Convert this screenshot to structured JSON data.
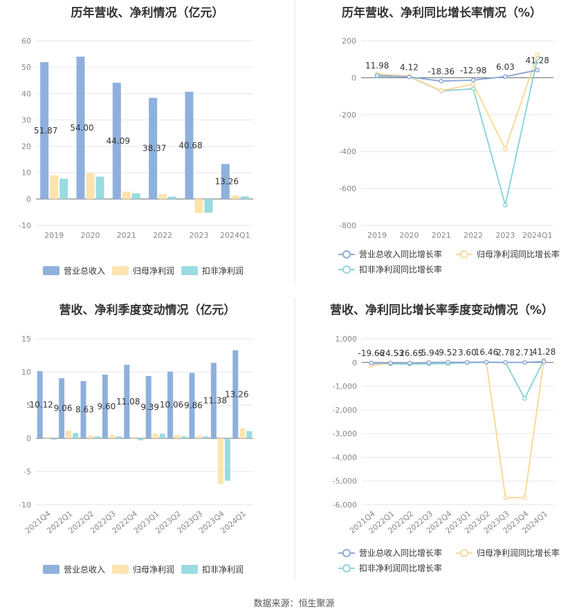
{
  "source": "数据来源：恒生聚源",
  "colors": {
    "revenue": "#8eb0dc",
    "profit": "#fde3ae",
    "nonprofit": "#99dbe0",
    "rev_line": "#8eaad6",
    "profit_line": "#fbd99b",
    "nonprofit_line": "#8fd4d8",
    "grid": "#e6e6e6",
    "axis_text": "#888888"
  },
  "chart_data": [
    {
      "type": "bar",
      "title": "历年营收、净利情况（亿元）",
      "categories": [
        "2019",
        "2020",
        "2021",
        "2022",
        "2023",
        "2024Q1"
      ],
      "ylim": [
        -10,
        60
      ],
      "yticks": [
        -10,
        0,
        10,
        20,
        30,
        40,
        50,
        60
      ],
      "series": [
        {
          "name": "营业总收入",
          "values": [
            51.87,
            54.0,
            44.09,
            38.37,
            40.68,
            13.26
          ]
        },
        {
          "name": "归母净利润",
          "values": [
            9.0,
            9.8,
            2.8,
            1.8,
            -5.3,
            1.3
          ]
        },
        {
          "name": "扣非净利润",
          "values": [
            7.7,
            8.5,
            2.2,
            0.9,
            -5.2,
            1.0
          ]
        }
      ],
      "data_labels": [
        "51.87",
        "54.00",
        "44.09",
        "38.37",
        "40.68",
        "13.26"
      ],
      "legend": "bottom"
    },
    {
      "type": "line",
      "title": "历年营收、净利同比增长率情况（%）",
      "categories": [
        "2019",
        "2020",
        "2021",
        "2022",
        "2023",
        "2024Q1"
      ],
      "ylim": [
        -800,
        200
      ],
      "yticks": [
        -800,
        -600,
        -400,
        -200,
        0,
        200
      ],
      "series": [
        {
          "name": "营业总收入同比增长率",
          "values": [
            11.98,
            4.12,
            -18.36,
            -12.98,
            6.03,
            41.28
          ]
        },
        {
          "name": "归母净利润同比增长率",
          "values": [
            20,
            8,
            -70,
            -35,
            -385,
            125
          ]
        },
        {
          "name": "扣非净利润同比增长率",
          "values": [
            8,
            6,
            -72,
            -60,
            -690,
            105
          ]
        }
      ],
      "data_labels": [
        "11.98",
        "4.12",
        "-18.36",
        "-12.98",
        "6.03",
        "41.28"
      ],
      "legend": "bottom"
    },
    {
      "type": "bar",
      "title": "营收、净利季度变动情况（亿元）",
      "categories": [
        "2021Q4",
        "2022Q1",
        "2022Q2",
        "2022Q3",
        "2022Q4",
        "2023Q1",
        "2023Q2",
        "2023Q3",
        "2023Q4",
        "2024Q1"
      ],
      "ylim": [
        -10,
        15
      ],
      "yticks": [
        -10,
        -5,
        0,
        5,
        10,
        15
      ],
      "series": [
        {
          "name": "营业总收入",
          "values": [
            10.12,
            9.06,
            8.63,
            9.6,
            11.08,
            9.39,
            10.06,
            9.86,
            11.38,
            13.26
          ]
        },
        {
          "name": "归母净利润",
          "values": [
            -0.1,
            1.2,
            0.4,
            0.5,
            -0.1,
            0.7,
            0.5,
            0.4,
            -6.9,
            1.5
          ]
        },
        {
          "name": "扣非净利润",
          "values": [
            -0.2,
            0.8,
            0.3,
            0.3,
            -0.3,
            0.7,
            0.3,
            0.3,
            -6.4,
            1.1
          ]
        }
      ],
      "data_labels": [
        "10.12",
        "9.06",
        "8.63",
        "9.60",
        "11.08",
        "9.39",
        "10.06",
        "9.86",
        "11.38",
        "13.26"
      ],
      "legend": "bottom"
    },
    {
      "type": "line",
      "title": "营收、净利同比增长率季度变动情况（%）",
      "categories": [
        "2021Q4",
        "2022Q1",
        "2022Q2",
        "2022Q3",
        "2022Q4",
        "2023Q1",
        "2023Q2",
        "2023Q3",
        "2023Q4",
        "2024Q1"
      ],
      "ylim": [
        -6000,
        1000
      ],
      "yticks": [
        -6000,
        -5000,
        -4000,
        -3000,
        -2000,
        -1000,
        0,
        1000
      ],
      "ytick_labels": [
        "-6,000",
        "-5,000",
        "-4,000",
        "-3,000",
        "-2,000",
        "-1,000",
        "0",
        "1,000"
      ],
      "series": [
        {
          "name": "营业总收入同比增长率",
          "values": [
            -19.66,
            -24.53,
            -26.65,
            -5.94,
            9.52,
            3.6,
            16.46,
            2.78,
            2.71,
            41.28
          ]
        },
        {
          "name": "归母净利润同比增长率",
          "values": [
            -130,
            -30,
            -20,
            5,
            10,
            10,
            20,
            -5700,
            -5700,
            80
          ]
        },
        {
          "name": "扣非净利润同比增长率",
          "values": [
            -40,
            -60,
            -70,
            -60,
            -50,
            -5,
            5,
            0,
            -1520,
            100
          ]
        }
      ],
      "data_labels": [
        "-19.66",
        "-24.53",
        "-26.65",
        "-5.94",
        "9.52",
        "3.60",
        "16.46",
        "2.78",
        "2.71",
        "41.28"
      ],
      "legend": "bottom"
    }
  ]
}
